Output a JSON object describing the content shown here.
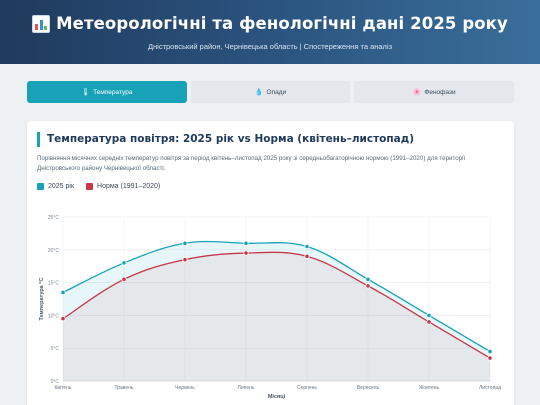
{
  "header": {
    "title": "Метеорологічні та фенологічні дані 2025 року",
    "icon": "bar-chart-icon",
    "subtitle": "Дністровський район, Чернівецька область | Спостереження та аналіз"
  },
  "tabs": [
    {
      "label": "Температура",
      "icon": "thermometer-icon",
      "glyph": "🌡",
      "active": true
    },
    {
      "label": "Опади",
      "icon": "droplet-icon",
      "glyph": "💧",
      "active": false
    },
    {
      "label": "Фенофази",
      "icon": "flower-icon",
      "glyph": "🌸",
      "active": false
    }
  ],
  "card": {
    "title": "Температура повітря: 2025 рік vs Норма (квітень–листопад)",
    "description": "Порівняння місячних середніх температур повітря за період квітень–листопад 2025 року зі середньобагаторічною нормою (1991–2020) для території Дністровського району Чернівецької області."
  },
  "colors": {
    "accent": "#17a2b8",
    "norm": "#c9364a"
  },
  "chart_data": {
    "type": "area",
    "categories": [
      "Квітень",
      "Травень",
      "Червень",
      "Липень",
      "Серпень",
      "Вересень",
      "Жовтень",
      "Листопад"
    ],
    "series": [
      {
        "name": "2025 рік",
        "values": [
          13.5,
          18.0,
          21.0,
          21.0,
          20.5,
          15.5,
          10.0,
          4.5
        ],
        "color": "#17a2b8"
      },
      {
        "name": "Норма (1991–2020)",
        "values": [
          9.5,
          15.5,
          18.5,
          19.5,
          19.0,
          14.5,
          9.0,
          3.5
        ],
        "color": "#c9364a"
      }
    ],
    "yticks": [
      "0°C",
      "5°C",
      "10°C",
      "15°C",
      "20°C",
      "25°C"
    ],
    "xlabel": "Місяці",
    "ylabel": "Температура °C",
    "ylim": [
      0,
      25
    ],
    "grid": true
  }
}
